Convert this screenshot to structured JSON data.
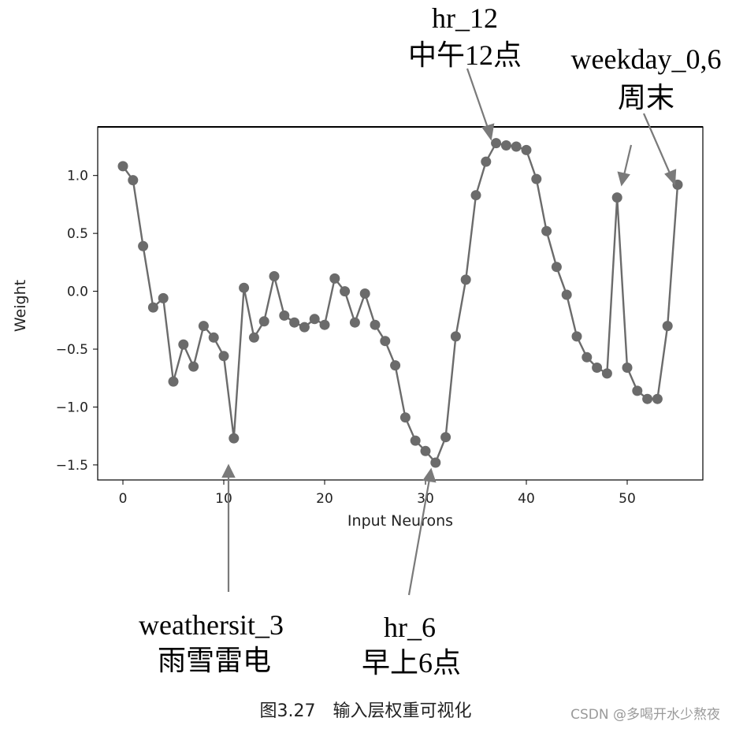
{
  "chart_data": {
    "type": "line",
    "title": "",
    "xlabel": "Input Neurons",
    "ylabel": "Weight",
    "xlim": [
      -2.5,
      57.5
    ],
    "ylim": [
      -1.63,
      1.42
    ],
    "x_ticks": [
      0,
      10,
      20,
      30,
      40,
      50
    ],
    "y_ticks": [
      1.0,
      0.5,
      0.0,
      -0.5,
      -1.0,
      -1.5
    ],
    "x_tick_labels": [
      "0",
      "10",
      "20",
      "30",
      "40",
      "50"
    ],
    "y_tick_labels": [
      "1.0",
      "0.5",
      "0.0",
      "−0.5",
      "−1.0",
      "−1.5"
    ],
    "grid": false,
    "series": [
      {
        "color": "#6b6b6b",
        "marker": "circle",
        "x": [
          0,
          1,
          2,
          3,
          4,
          5,
          6,
          7,
          8,
          9,
          10,
          11,
          12,
          13,
          14,
          15,
          16,
          17,
          18,
          19,
          20,
          21,
          22,
          23,
          24,
          25,
          26,
          27,
          28,
          29,
          30,
          31,
          32,
          33,
          34,
          35,
          36,
          37,
          38,
          39,
          40,
          41,
          42,
          43,
          44,
          45,
          46,
          47,
          48,
          49,
          50,
          51,
          52,
          53,
          54,
          55
        ],
        "values": [
          1.08,
          0.96,
          0.39,
          -0.14,
          -0.06,
          -0.78,
          -0.46,
          -0.65,
          -0.3,
          -0.4,
          -0.56,
          -1.27,
          0.03,
          -0.4,
          -0.26,
          0.13,
          -0.21,
          -0.27,
          -0.31,
          -0.24,
          -0.29,
          0.11,
          0.0,
          -0.27,
          -0.02,
          -0.29,
          -0.43,
          -0.64,
          -1.09,
          -1.29,
          -1.38,
          -1.48,
          -1.26,
          -0.39,
          0.1,
          0.83,
          1.12,
          1.28,
          1.26,
          1.25,
          1.22,
          0.97,
          0.52,
          0.21,
          -0.03,
          -0.39,
          -0.57,
          -0.66,
          -0.71,
          0.81,
          -0.66,
          -0.86,
          -0.93,
          -0.93,
          -0.3,
          0.92
        ]
      }
    ],
    "annotations": [
      {
        "id": "hr-12",
        "lines": [
          "hr_12",
          "中午12点"
        ]
      },
      {
        "id": "weekday",
        "lines": [
          "weekday_0,6",
          "周末"
        ]
      },
      {
        "id": "weathersit",
        "lines": [
          "weathersit_3",
          "雨雪雷电"
        ]
      },
      {
        "id": "hr-6",
        "lines": [
          "hr_6",
          "早上6点"
        ]
      }
    ]
  },
  "caption": "图3.27　输入层权重可视化",
  "watermark": "CSDN @多喝开水少熬夜"
}
